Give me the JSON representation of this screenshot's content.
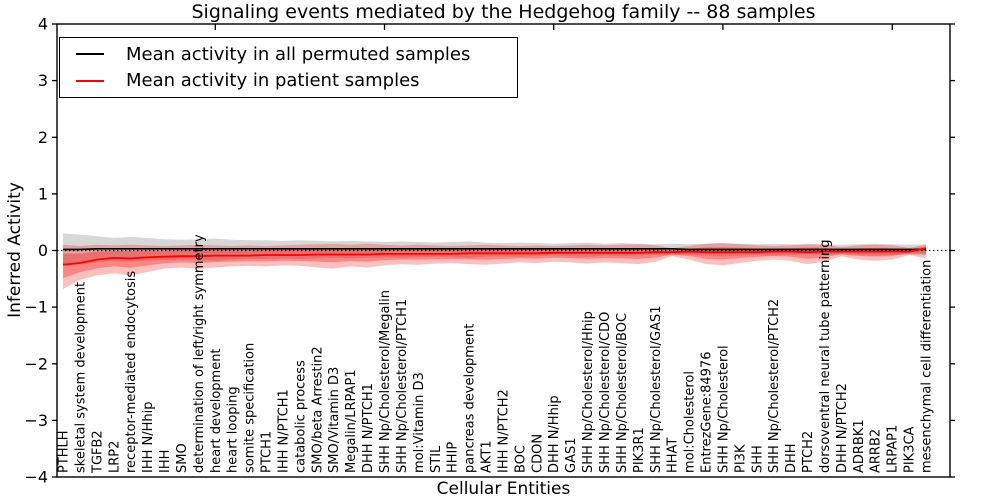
{
  "figure": {
    "title": "Signaling events mediated by the Hedgehog family -- 88 samples",
    "background": "#ffffff"
  },
  "legend": {
    "position": "upper left",
    "entries": [
      {
        "label": "Mean activity in all permuted samples",
        "color": "#000000"
      },
      {
        "label": "Mean activity in patient samples",
        "color": "#ff0000"
      }
    ]
  },
  "chart_data": {
    "type": "line",
    "title": "Signaling events mediated by the Hedgehog family -- 88 samples",
    "xlabel": "Cellular Entities",
    "ylabel": "Inferred Activity",
    "ylim": [
      -4,
      4
    ],
    "grid": false,
    "legend_position": "upper left",
    "y_ticks": [
      4,
      3,
      2,
      1,
      0,
      -1,
      -2,
      -3,
      -4
    ],
    "y_tick_labels": [
      "4",
      "3",
      "2",
      "1",
      "0",
      "−1",
      "−2",
      "−3",
      "−4"
    ],
    "x_top_tick_positions": [
      10,
      20,
      30,
      40,
      50
    ],
    "zero_line": {
      "style": "dotted",
      "value": 0,
      "color": "#000000"
    },
    "categories": [
      "PTHLH",
      "skeletal system development",
      "TGFB2",
      "LRP2",
      "receptor-mediated endocytosis",
      "IHH N/Hhip",
      "IHH",
      "SMO",
      "determination of left/right symmetry",
      "heart development",
      "heart looping",
      "somite specification",
      "PTCH1",
      "IHH N/PTCH1",
      "catabolic process",
      "SMO/beta Arrestin2",
      "SMO/Vitamin D3",
      "Megalin/LRPAP1",
      "DHH N/PTCH1",
      "SHH Np/Cholesterol/Megalin",
      "SHH Np/Cholesterol/PTCH1",
      "mol:Vitamin D3",
      "STIL",
      "HHIP",
      "pancreas development",
      "AKT1",
      "IHH N/PTCH2",
      "BOC",
      "CDON",
      "DHH N/Hhip",
      "GAS1",
      "SHH Np/Cholesterol/Hhip",
      "SHH Np/Cholesterol/CDO",
      "SHH Np/Cholesterol/BOC",
      "PIK3R1",
      "SHH Np/Cholesterol/GAS1",
      "HHAT",
      "mol:Cholesterol",
      "EntrezGene:84976",
      "SHH Np/Cholesterol",
      "PI3K",
      "SHH",
      "SHH Np/Cholesterol/PTCH2",
      "DHH",
      "PTCH2",
      "dorsoventral neural tube patterning",
      "DHH N/PTCH2",
      "ADRBK1",
      "ARRB2",
      "LRPAP1",
      "PIK3CA",
      "mesenchymal cell differentiation"
    ],
    "series": [
      {
        "name": "Mean activity in all permuted samples",
        "color": "#000000",
        "values": [
          0.02,
          0.02,
          0.03,
          0.03,
          0.03,
          0.03,
          0.03,
          0.03,
          0.03,
          0.03,
          0.03,
          0.03,
          0.03,
          0.03,
          0.03,
          0.03,
          0.03,
          0.03,
          0.03,
          0.03,
          0.03,
          0.03,
          0.03,
          0.03,
          0.03,
          0.03,
          0.03,
          0.03,
          0.03,
          0.03,
          0.03,
          0.03,
          0.03,
          0.03,
          0.03,
          0.03,
          0.03,
          0.02,
          0.02,
          0.02,
          0.02,
          0.02,
          0.02,
          0.02,
          0.02,
          0.02,
          0.02,
          0.02,
          0.02,
          0.02,
          0.02,
          0.02
        ]
      },
      {
        "name": "Mean activity in patient samples",
        "color": "#ff0000",
        "values": [
          -0.25,
          -0.22,
          -0.16,
          -0.13,
          -0.14,
          -0.12,
          -0.11,
          -0.1,
          -0.1,
          -0.09,
          -0.09,
          -0.09,
          -0.08,
          -0.08,
          -0.08,
          -0.07,
          -0.07,
          -0.07,
          -0.07,
          -0.06,
          -0.06,
          -0.06,
          -0.06,
          -0.06,
          -0.05,
          -0.05,
          -0.05,
          -0.05,
          -0.05,
          -0.04,
          -0.04,
          -0.04,
          -0.04,
          -0.04,
          -0.04,
          -0.03,
          -0.03,
          -0.02,
          -0.03,
          -0.03,
          -0.03,
          -0.03,
          -0.02,
          -0.02,
          -0.03,
          -0.02,
          -0.02,
          -0.02,
          -0.02,
          -0.02,
          -0.02,
          0.04
        ]
      }
    ],
    "bands": [
      {
        "name": "permuted samples spread",
        "color": "rgba(130,130,130,0.32)",
        "upper": [
          0.3,
          0.28,
          0.25,
          0.22,
          0.24,
          0.22,
          0.2,
          0.19,
          0.2,
          0.21,
          0.19,
          0.18,
          0.18,
          0.17,
          0.18,
          0.17,
          0.16,
          0.17,
          0.16,
          0.15,
          0.16,
          0.15,
          0.14,
          0.15,
          0.16,
          0.14,
          0.13,
          0.14,
          0.13,
          0.12,
          0.13,
          0.14,
          0.12,
          0.13,
          0.12,
          0.11,
          0.12,
          0.11,
          0.12,
          0.13,
          0.12,
          0.11,
          0.12,
          0.11,
          0.1,
          0.11,
          0.1,
          0.11,
          0.12,
          0.11,
          0.1,
          0.11
        ],
        "lower": [
          -0.26,
          -0.24,
          -0.21,
          -0.19,
          -0.2,
          -0.18,
          -0.17,
          -0.16,
          -0.17,
          -0.18,
          -0.16,
          -0.15,
          -0.15,
          -0.14,
          -0.15,
          -0.14,
          -0.13,
          -0.14,
          -0.13,
          -0.12,
          -0.13,
          -0.12,
          -0.11,
          -0.12,
          -0.13,
          -0.11,
          -0.1,
          -0.11,
          -0.1,
          -0.09,
          -0.1,
          -0.11,
          -0.09,
          -0.1,
          -0.09,
          -0.08,
          -0.09,
          -0.08,
          -0.09,
          -0.1,
          -0.09,
          -0.08,
          -0.09,
          -0.08,
          -0.07,
          -0.08,
          -0.07,
          -0.08,
          -0.09,
          -0.08,
          -0.07,
          -0.08
        ]
      },
      {
        "name": "patient samples spread",
        "color": "rgba(255,0,0,0.25)",
        "upper": [
          0.1,
          0.08,
          0.1,
          0.09,
          0.1,
          0.09,
          0.08,
          0.09,
          0.1,
          0.09,
          0.08,
          0.09,
          0.08,
          0.09,
          0.1,
          0.11,
          0.12,
          0.1,
          0.12,
          0.1,
          0.09,
          0.1,
          0.09,
          0.08,
          0.09,
          0.1,
          0.09,
          0.08,
          0.09,
          0.08,
          0.09,
          0.1,
          0.09,
          0.1,
          0.11,
          0.09,
          0.04,
          0.08,
          0.12,
          0.13,
          0.11,
          0.09,
          0.08,
          0.09,
          0.12,
          0.1,
          0.06,
          0.09,
          0.1,
          0.09,
          0.05,
          0.1
        ],
        "lower": [
          -0.68,
          -0.52,
          -0.44,
          -0.4,
          -0.44,
          -0.38,
          -0.32,
          -0.3,
          -0.32,
          -0.3,
          -0.28,
          -0.27,
          -0.28,
          -0.26,
          -0.27,
          -0.3,
          -0.32,
          -0.28,
          -0.3,
          -0.26,
          -0.24,
          -0.25,
          -0.23,
          -0.22,
          -0.24,
          -0.25,
          -0.23,
          -0.21,
          -0.22,
          -0.2,
          -0.21,
          -0.23,
          -0.21,
          -0.22,
          -0.24,
          -0.2,
          -0.1,
          -0.16,
          -0.24,
          -0.26,
          -0.22,
          -0.18,
          -0.16,
          -0.18,
          -0.24,
          -0.2,
          -0.1,
          -0.16,
          -0.18,
          -0.16,
          -0.08,
          -0.14
        ]
      }
    ]
  }
}
